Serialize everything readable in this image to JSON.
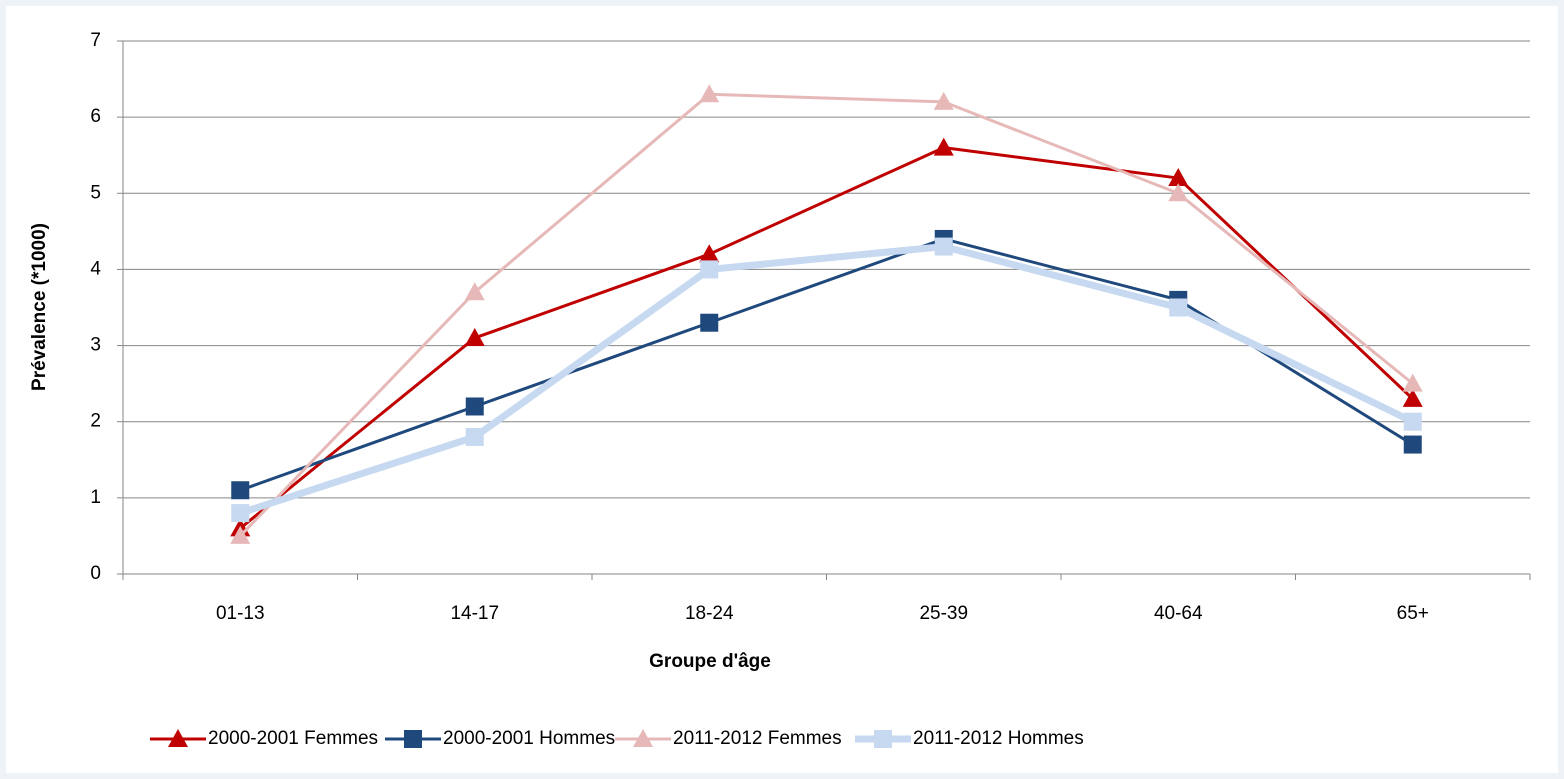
{
  "chart_data": {
    "type": "line",
    "x_label": "Groupe d'âge",
    "y_label": "Prévalence (*1000)",
    "categories": [
      "01-13",
      "14-17",
      "18-24",
      "25-39",
      "40-64",
      "65+"
    ],
    "series": [
      {
        "name": "2000-2001 Femmes",
        "color": "#c00000",
        "marker": "triangle",
        "values": [
          0.6,
          3.1,
          4.2,
          5.6,
          5.2,
          2.3
        ]
      },
      {
        "name": "2000-2001 Hommes",
        "color": "#1f497d",
        "marker": "square",
        "values": [
          1.1,
          2.2,
          3.3,
          4.4,
          3.6,
          1.7
        ]
      },
      {
        "name": "2011-2012 Femmes",
        "color": "#e6b9b8",
        "marker": "triangle",
        "values": [
          0.5,
          3.7,
          6.3,
          6.2,
          5.0,
          2.5
        ]
      },
      {
        "name": "2011-2012 Hommes",
        "color": "#c6d9f1",
        "marker": "square",
        "values": [
          0.8,
          1.8,
          4.0,
          4.3,
          3.5,
          2.0
        ]
      }
    ],
    "ylim": [
      0,
      7
    ],
    "yticks": [
      0,
      1,
      2,
      3,
      4,
      5,
      6,
      7
    ],
    "grid": true,
    "legend": "bottom"
  }
}
